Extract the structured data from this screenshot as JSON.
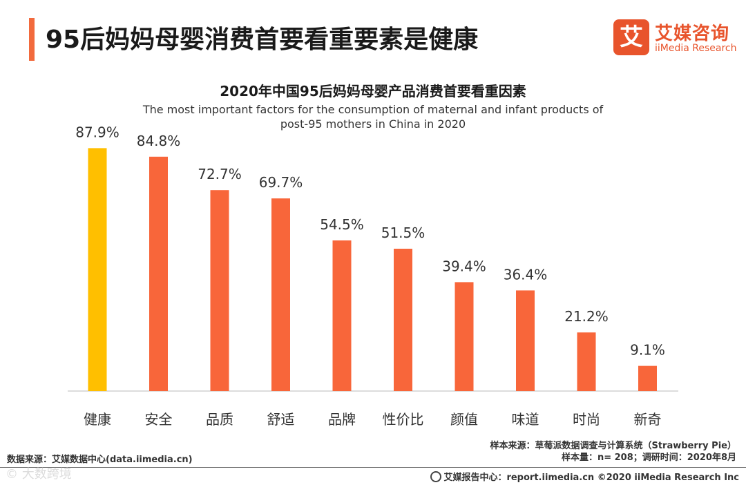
{
  "header": {
    "title": "95后妈妈母婴消费首要看重要素是健康",
    "logo_mark": "艾",
    "logo_cn": "艾媒咨询",
    "logo_en": "iiMedia Research"
  },
  "chart_data": {
    "type": "bar",
    "title": "2020年中国95后妈妈母婴产品消费首要看重因素",
    "subtitle_line1": "The most important factors for the consumption of maternal and infant products of",
    "subtitle_line2": "post-95 mothers in China in 2020",
    "categories": [
      "健康",
      "安全",
      "品质",
      "舒适",
      "品牌",
      "性价比",
      "颜值",
      "味道",
      "时尚",
      "新奇"
    ],
    "values": [
      87.9,
      84.8,
      72.7,
      69.7,
      54.5,
      51.5,
      39.4,
      36.4,
      21.2,
      9.1
    ],
    "value_labels": [
      "87.9%",
      "84.8%",
      "72.7%",
      "69.7%",
      "54.5%",
      "51.5%",
      "39.4%",
      "36.4%",
      "21.2%",
      "9.1%"
    ],
    "unit": "%",
    "ylim": [
      0,
      100
    ],
    "highlight_index": 0,
    "colors": {
      "highlight": "#ffbf00",
      "bar": "#f8663a",
      "axis": "#d0d0d0"
    },
    "xlabel": "",
    "ylabel": ""
  },
  "footer": {
    "source_left": "数据来源：艾媒数据中心(data.iimedia.cn)",
    "sample_source": "样本来源：草莓派数据调查与计算系统（Strawberry Pie）",
    "sample_size": "样本量：n= 208；调研时间：2020年8月",
    "report_center": "艾媒报告中心：report.iimedia.cn  ©2020  iiMedia Research  Inc",
    "watermark": "© 大数跨境"
  }
}
